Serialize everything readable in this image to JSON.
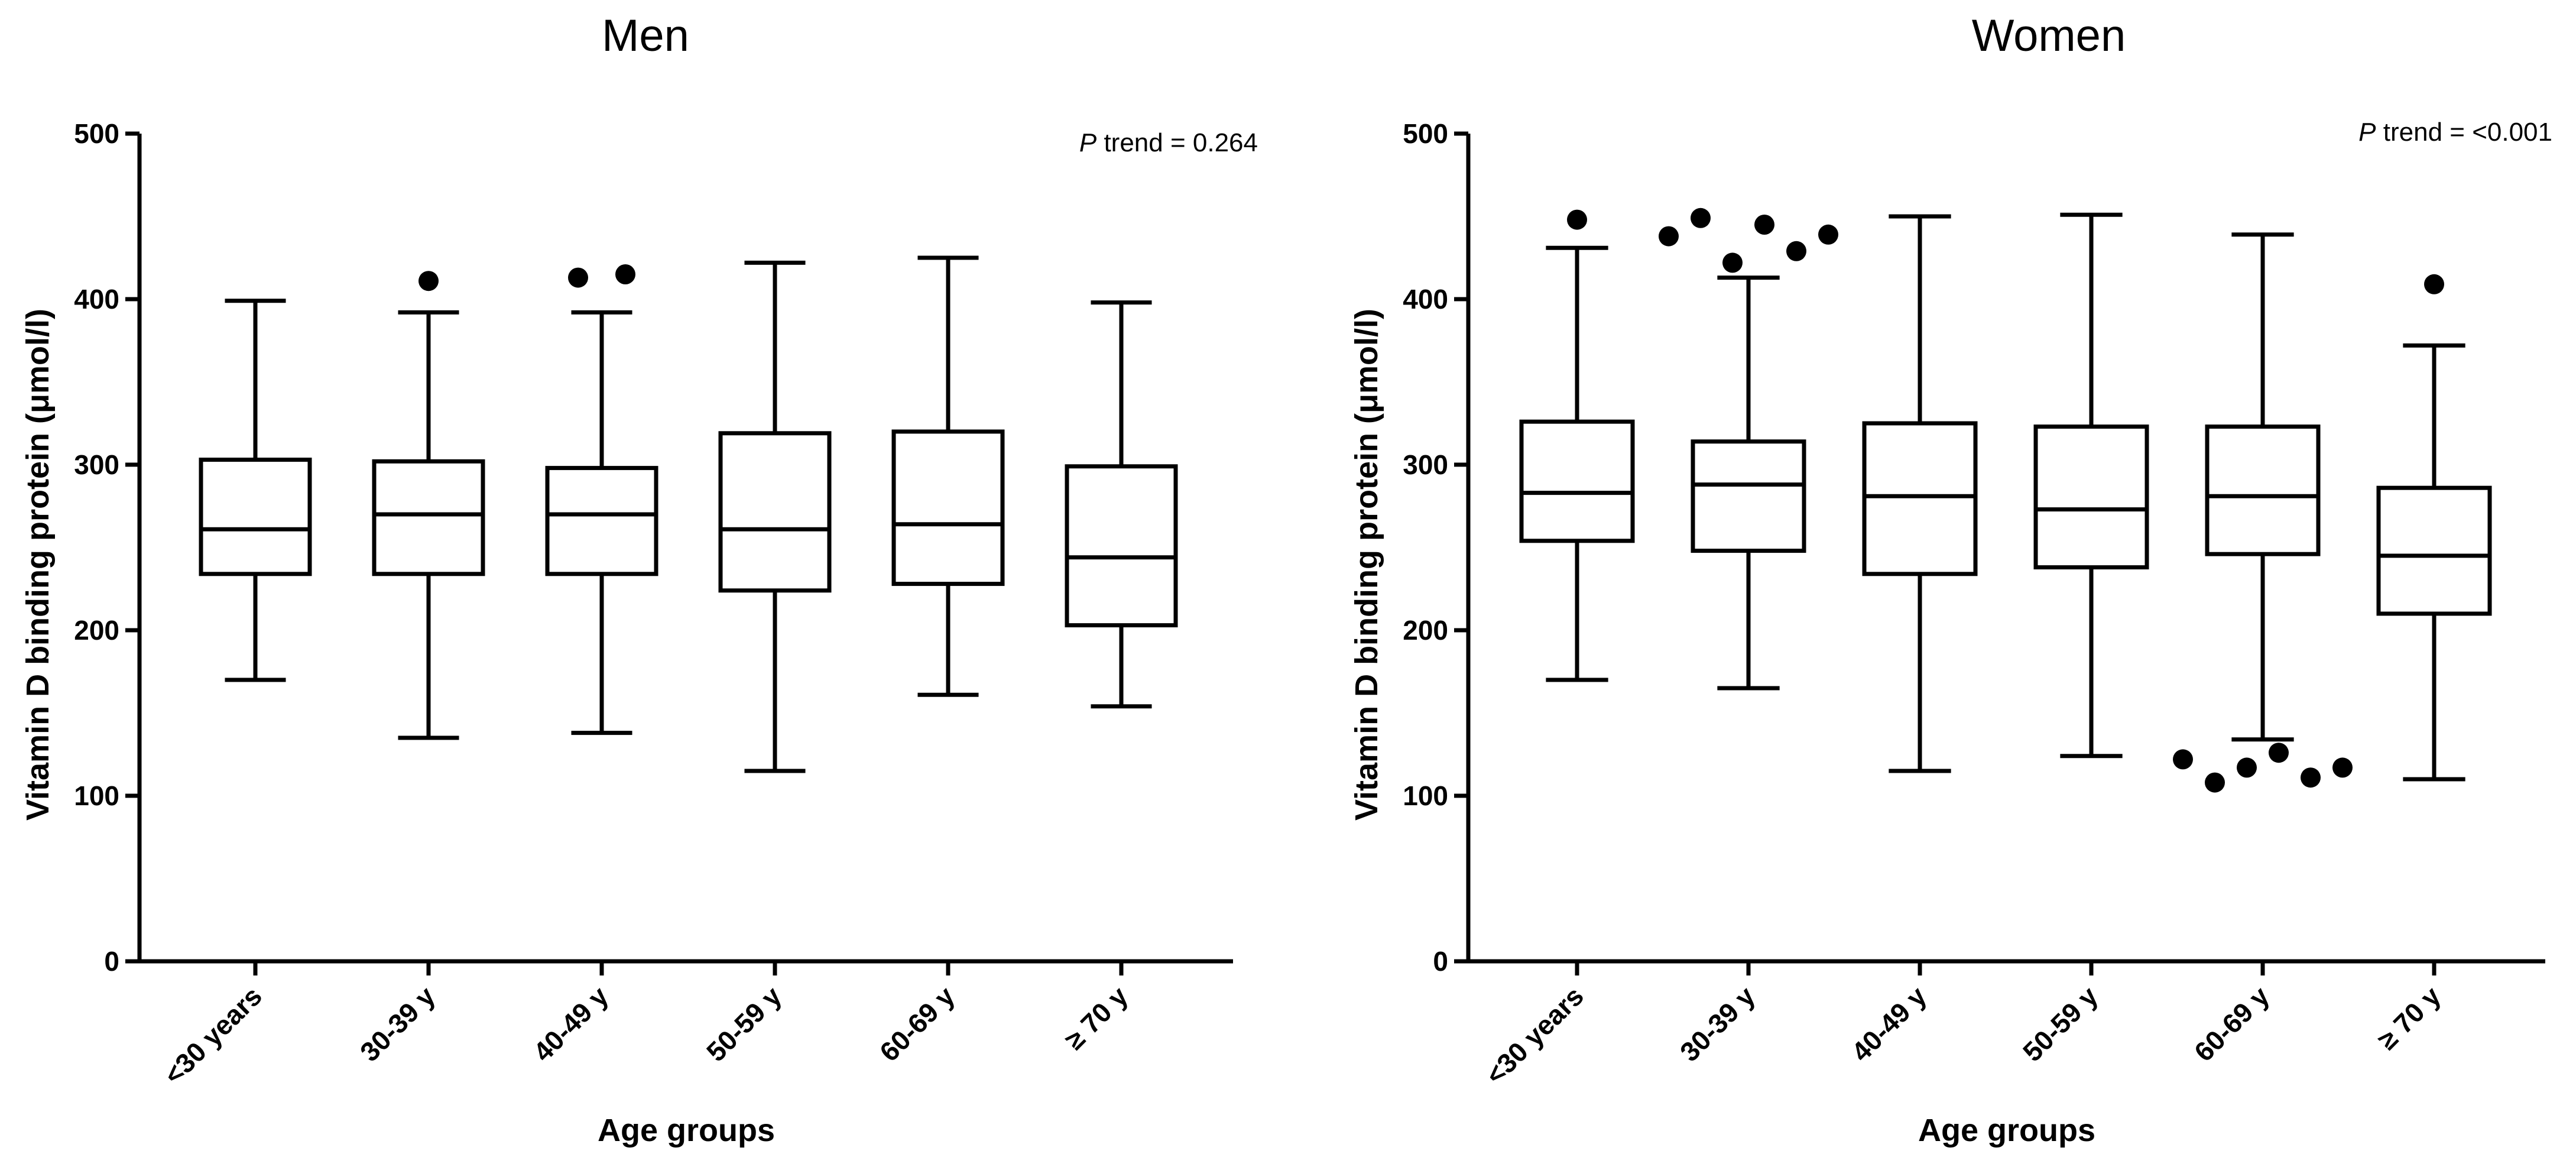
{
  "chart_data": [
    {
      "type": "box",
      "title": "Men",
      "xlabel": "Age groups",
      "ylabel": "Vitamin D binding protein (μmol/l)",
      "ylim": [
        0,
        500
      ],
      "yticks": [
        0,
        100,
        200,
        300,
        400,
        500
      ],
      "annotation": {
        "italic": "P",
        "text": " trend = 0.264"
      },
      "categories": [
        "<30 years",
        "30-39 y",
        "40-49 y",
        "50-59 y",
        "60-69 y",
        "≥ 70 y"
      ],
      "boxes": [
        {
          "min": 170,
          "q1": 234,
          "median": 261,
          "q3": 303,
          "max": 399,
          "outliers": []
        },
        {
          "min": 135,
          "q1": 234,
          "median": 270,
          "q3": 302,
          "max": 392,
          "outliers": [
            411
          ]
        },
        {
          "min": 138,
          "q1": 234,
          "median": 270,
          "q3": 298,
          "max": 392,
          "outliers": [
            413,
            415
          ]
        },
        {
          "min": 115,
          "q1": 224,
          "median": 261,
          "q3": 319,
          "max": 422,
          "outliers": []
        },
        {
          "min": 161,
          "q1": 228,
          "median": 264,
          "q3": 320,
          "max": 425,
          "outliers": []
        },
        {
          "min": 154,
          "q1": 203,
          "median": 244,
          "q3": 299,
          "max": 398,
          "outliers": []
        }
      ]
    },
    {
      "type": "box",
      "title": "Women",
      "xlabel": "Age groups",
      "ylabel": "Vitamin D binding protein (μmol/l)",
      "ylim": [
        0,
        500
      ],
      "yticks": [
        0,
        100,
        200,
        300,
        400,
        500
      ],
      "annotation": {
        "italic": "P",
        "text": " trend = <0.001"
      },
      "categories": [
        "<30 years",
        "30-39 y",
        "40-49 y",
        "50-59 y",
        "60-69 y",
        "≥ 70 y"
      ],
      "boxes": [
        {
          "min": 170,
          "q1": 254,
          "median": 283,
          "q3": 326,
          "max": 431,
          "outliers": [
            448
          ]
        },
        {
          "min": 165,
          "q1": 248,
          "median": 288,
          "q3": 314,
          "max": 413,
          "outliers": [
            438,
            449,
            422,
            445,
            429,
            439
          ]
        },
        {
          "min": 115,
          "q1": 234,
          "median": 281,
          "q3": 325,
          "max": 450,
          "outliers": []
        },
        {
          "min": 124,
          "q1": 238,
          "median": 273,
          "q3": 323,
          "max": 451,
          "outliers": []
        },
        {
          "min": 134,
          "q1": 246,
          "median": 281,
          "q3": 323,
          "max": 439,
          "outliers": [
            122,
            108,
            117,
            126,
            111,
            117
          ]
        },
        {
          "min": 110,
          "q1": 210,
          "median": 245,
          "q3": 286,
          "max": 372,
          "outliers": [
            409
          ]
        }
      ]
    }
  ]
}
